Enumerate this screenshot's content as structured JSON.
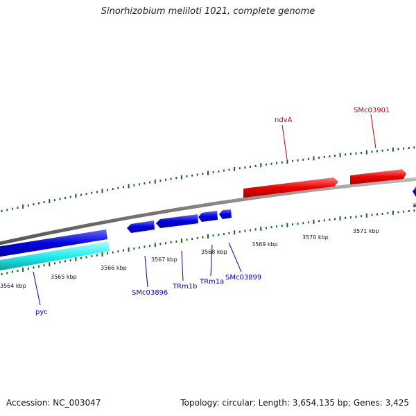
{
  "title": "Sinorhizobium meliloti 1021, complete genome",
  "footer": {
    "accession": "Accession: NC_003047",
    "stats": "Topology: circular; Length: 3,654,135 bp; Genes: 3,425"
  },
  "colors": {
    "forward_gene": "#ee0000",
    "reverse_gene": "#0000dd",
    "highlight_gene": "#22eeee",
    "backbone": "#888888",
    "ticks": "#116611",
    "forward_label": "#cc0000",
    "reverse_label": "#0000aa"
  },
  "scale_labels": [
    "3564 kbp",
    "3565 kbp",
    "3566 kbp",
    "3567 kbp",
    "3568 kbp",
    "3569 kbp",
    "3570 kbp",
    "3571 kbp"
  ],
  "gene_labels": {
    "forward": [
      "ndvA",
      "SMc03901"
    ],
    "reverse": [
      "pyc",
      "SMc03896",
      "TRm1b",
      "TRm1a",
      "SMc03899"
    ]
  }
}
